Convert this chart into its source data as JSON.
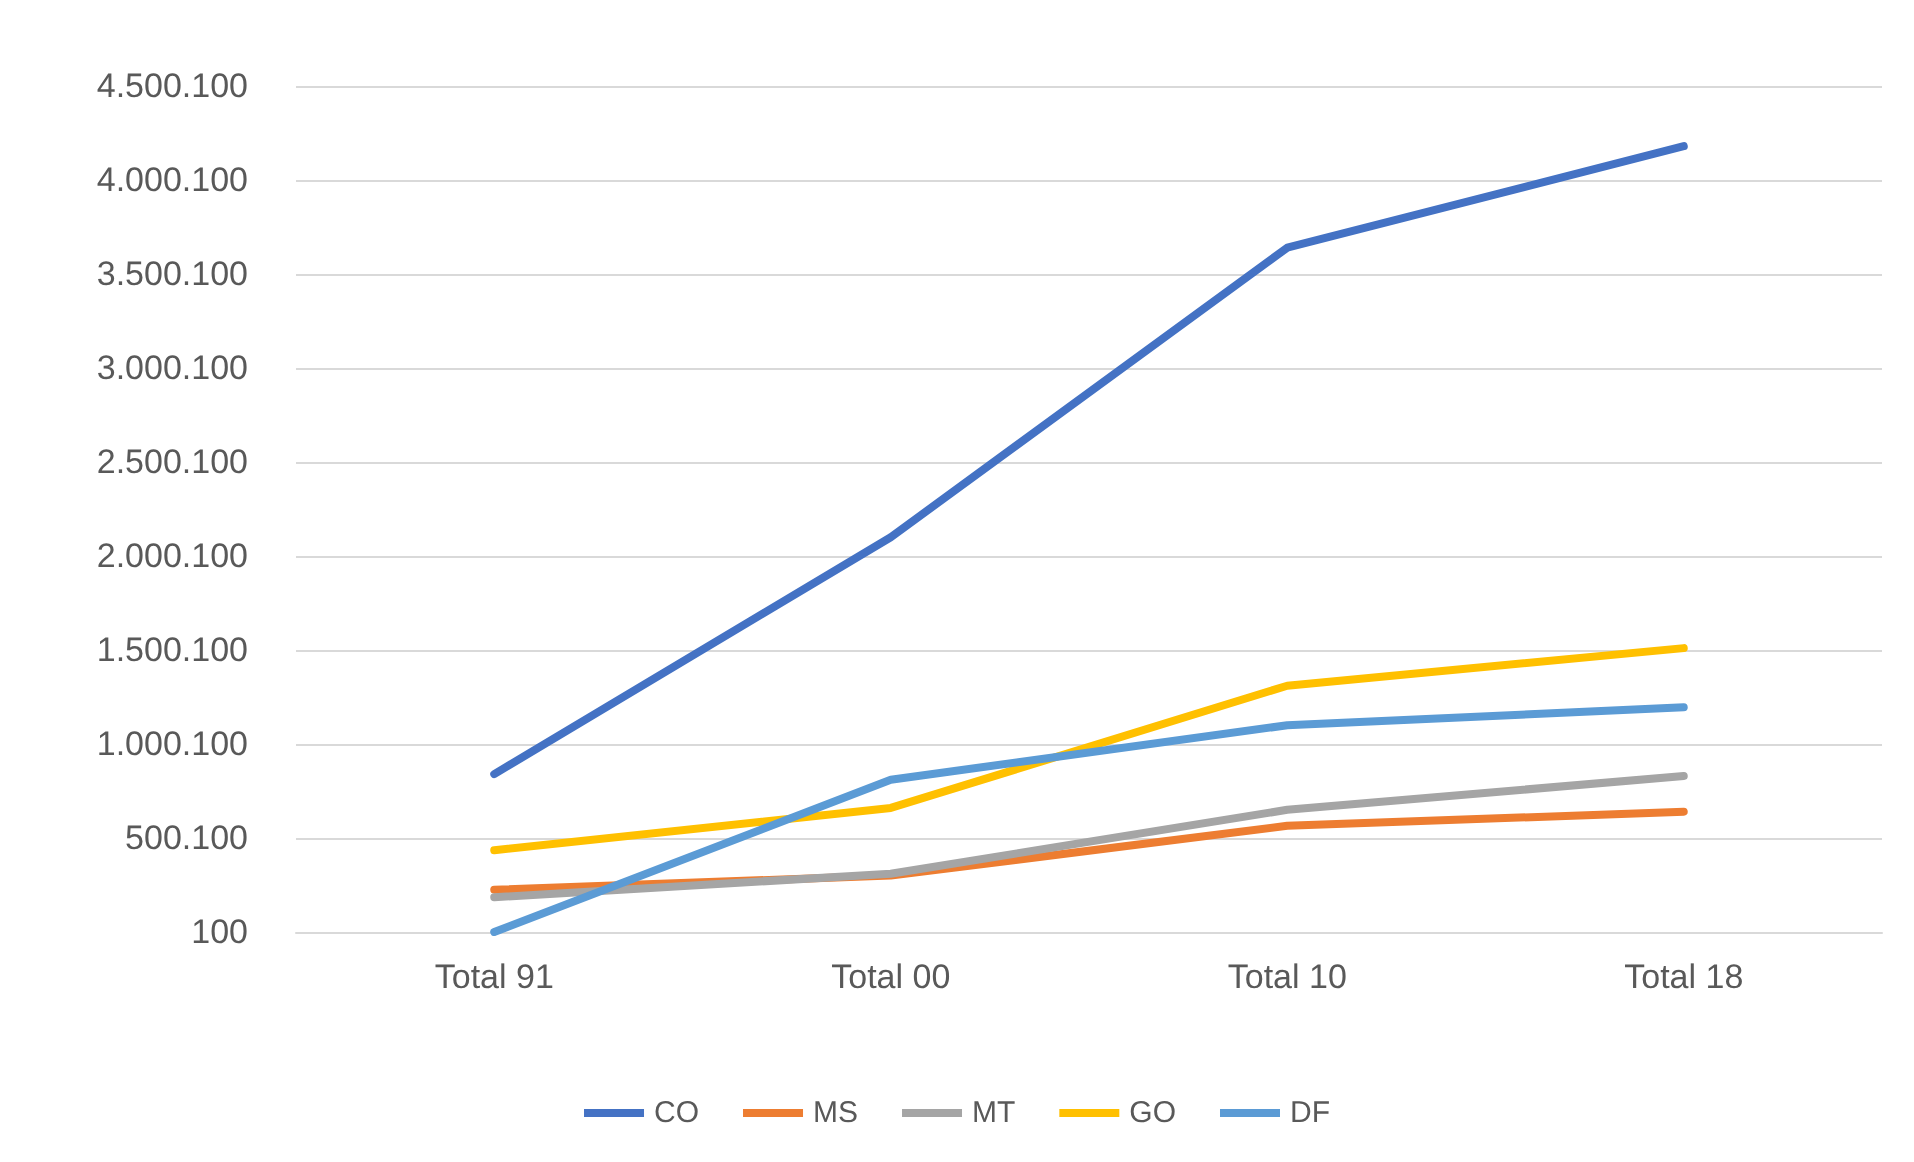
{
  "chart_data": {
    "type": "line",
    "categories": [
      "Total 91",
      "Total 00",
      "Total 10",
      "Total 18"
    ],
    "series": [
      {
        "name": "CO",
        "color": "#4472c4",
        "values": [
          840000,
          2100000,
          3640000,
          4180000
        ]
      },
      {
        "name": "MS",
        "color": "#ed7d31",
        "values": [
          225000,
          300000,
          565000,
          640000
        ]
      },
      {
        "name": "MT",
        "color": "#a5a5a5",
        "values": [
          185000,
          310000,
          650000,
          830000
        ]
      },
      {
        "name": "GO",
        "color": "#ffc000",
        "values": [
          435000,
          660000,
          1310000,
          1510000
        ]
      },
      {
        "name": "DF",
        "color": "#5b9bd5",
        "values": [
          100,
          810000,
          1100000,
          1195000
        ]
      }
    ],
    "ylim": [
      100,
      4500100
    ],
    "yticks": [
      {
        "value": 100,
        "label": "100"
      },
      {
        "value": 500100,
        "label": "500.100"
      },
      {
        "value": 1000100,
        "label": "1.000.100"
      },
      {
        "value": 1500100,
        "label": "1.500.100"
      },
      {
        "value": 2000100,
        "label": "2.000.100"
      },
      {
        "value": 2500100,
        "label": "2.500.100"
      },
      {
        "value": 3000100,
        "label": "3.000.100"
      },
      {
        "value": 3500100,
        "label": "3.500.100"
      },
      {
        "value": 4000100,
        "label": "4.000.100"
      },
      {
        "value": 4500100,
        "label": "4.500.100"
      }
    ],
    "grid": "y",
    "legend": "bottom",
    "marker": "none",
    "line_style": "solid"
  }
}
